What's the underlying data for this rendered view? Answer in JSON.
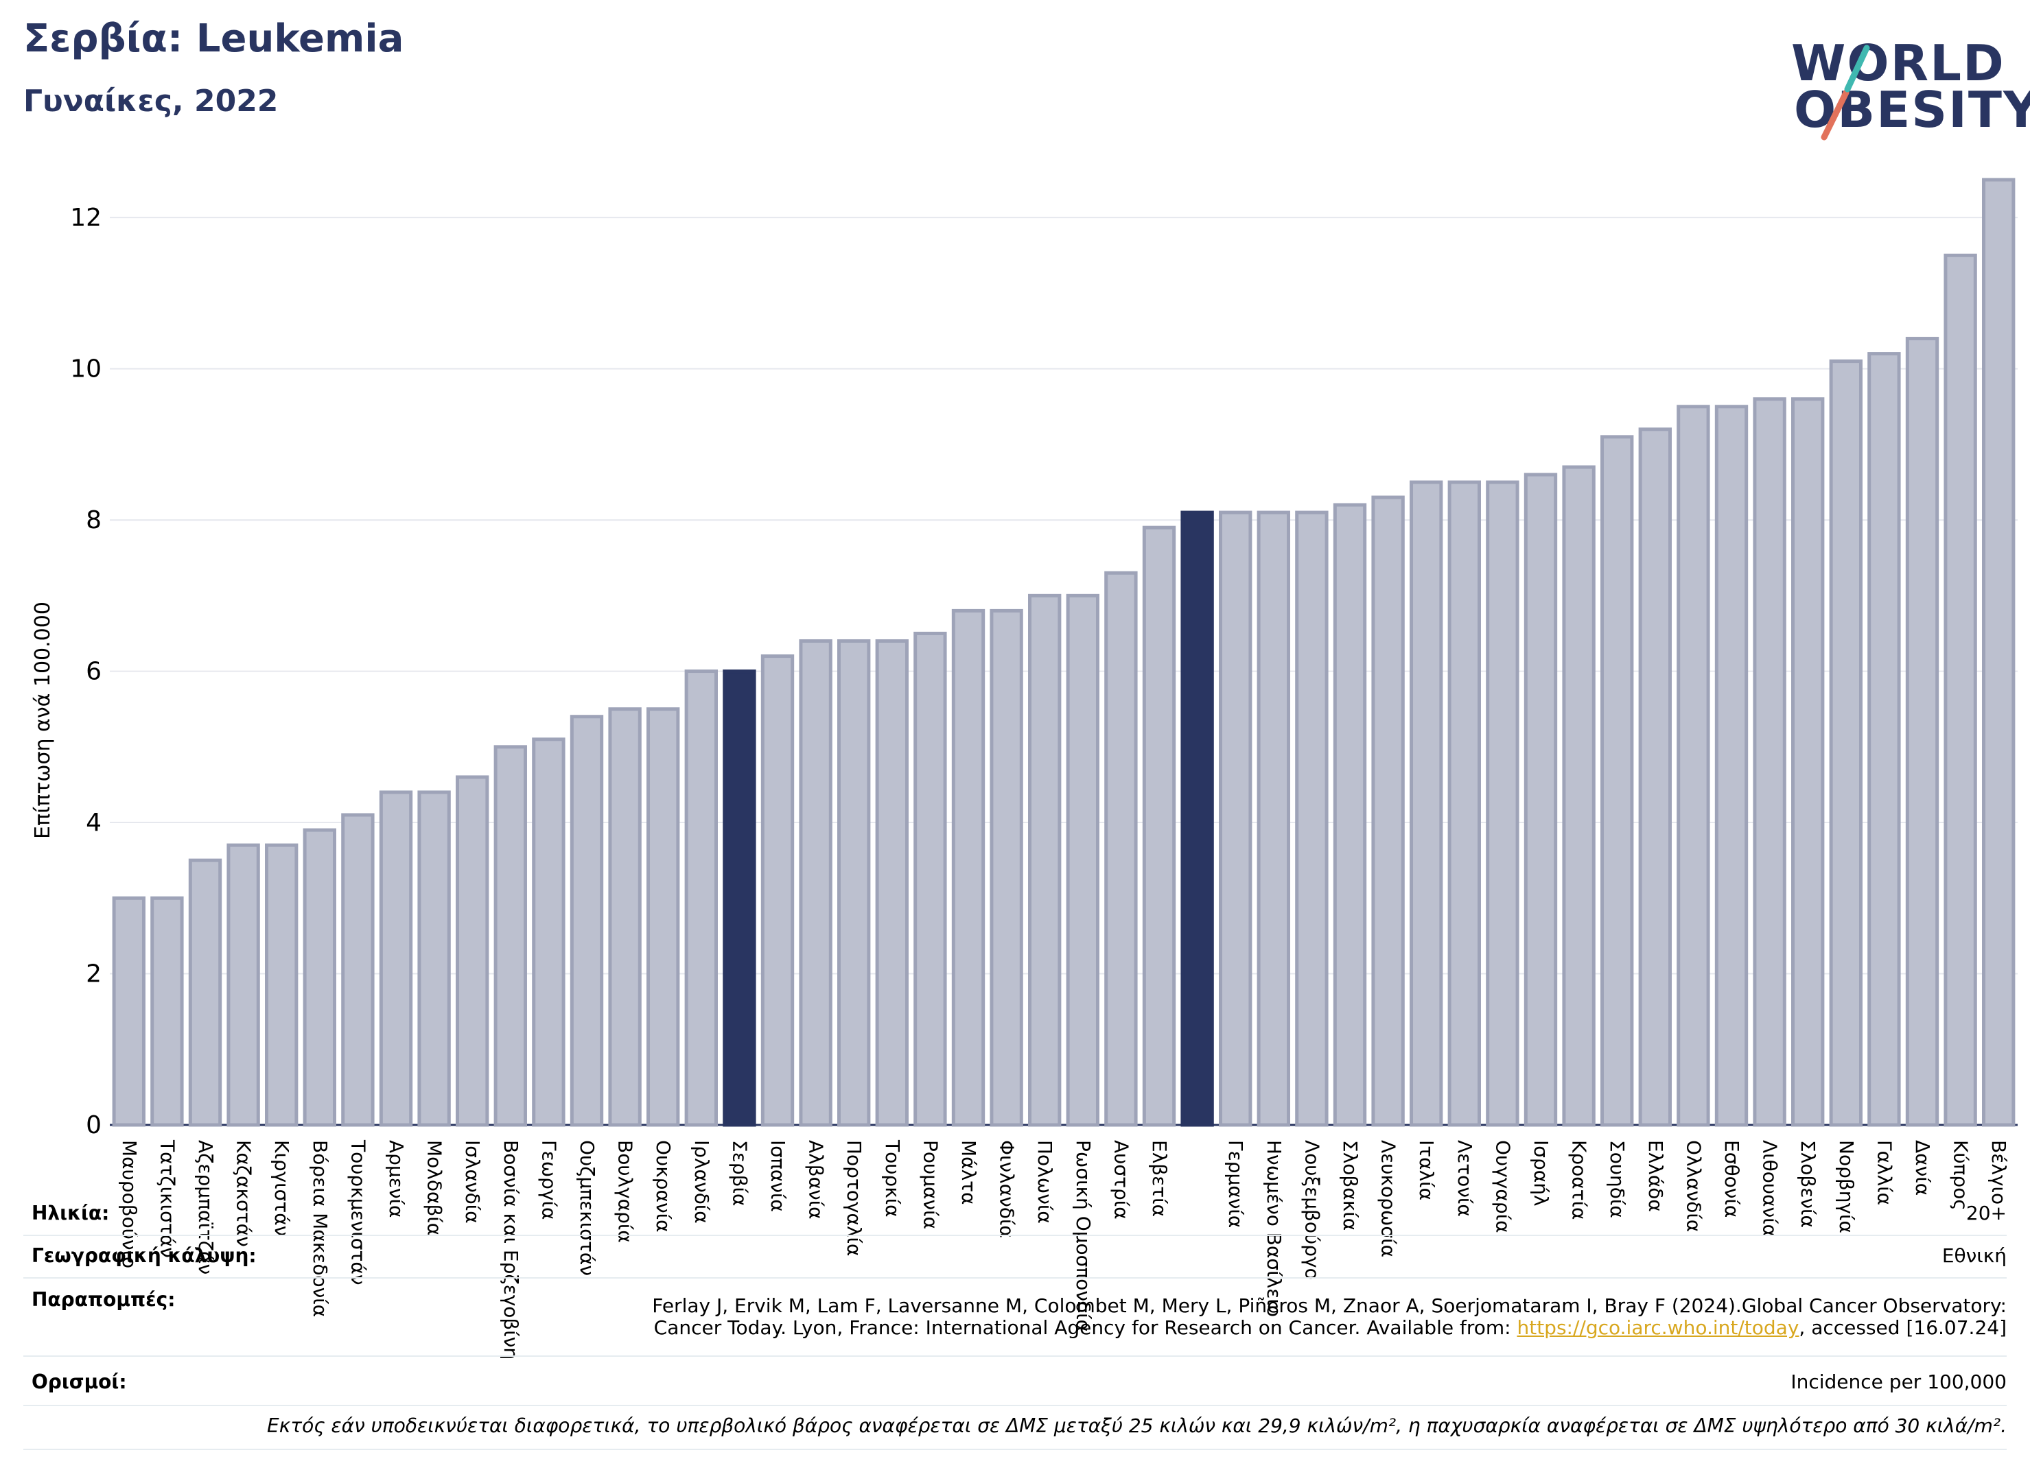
{
  "header": {
    "title": "Σερβία: Leukemia",
    "subtitle": "Γυναίκες, 2022"
  },
  "logo": {
    "line1": "WORLD",
    "line2": "OBESITY"
  },
  "chart_data": {
    "type": "bar",
    "ylabel": "Επίπτωση ανά 100.000",
    "ylim": [
      0,
      12.7
    ],
    "yticks": [
      0,
      2,
      4,
      6,
      8,
      10,
      12
    ],
    "grid": true,
    "colors": {
      "default": "#bcc0cf",
      "default_border": "#9ea3b8",
      "highlight": "#293561"
    },
    "categories": [
      "Μαυροβούνιο",
      "Τατζικιστάν",
      "Αζερμπαϊτζάν",
      "Καζακστάν",
      "Κιργιστάν",
      "Βόρεια Μακεδονία",
      "Τουρκμενιστάν",
      "Αρμενία",
      "Μολδαβία",
      "Ισλανδία",
      "Βοσνία και Ερζεγοβίνη",
      "Γεωργία",
      "Ουζμπεκιστάν",
      "Βουλγαρία",
      "Ουκρανία",
      "Ιρλανδία",
      "Σερβία",
      "Ισπανία",
      "Αλβανία",
      "Πορτογαλία",
      "Τουρκία",
      "Ρουμανία",
      "Μάλτα",
      "Φινλανδία",
      "Πολωνία",
      "Ρωσική Ομοσπονδία",
      "Αυστρία",
      "Ελβετία",
      "",
      "Γερμανία",
      "Ηνωμένο Βασίλειο",
      "Λουξεμβούργο",
      "Σλοβακία",
      "Λευκορωσία",
      "Ιταλία",
      "Λετονία",
      "Ουγγαρία",
      "Ισραήλ",
      "Κροατία",
      "Σουηδία",
      "Ελλάδα",
      "Ολλανδία",
      "Εσθονία",
      "Λιθουανία",
      "Σλοβενία",
      "Νορβηγία",
      "Γαλλία",
      "Δανία",
      "Κύπρος",
      "Βέλγιο"
    ],
    "values": [
      3.0,
      3.0,
      3.5,
      3.7,
      3.7,
      3.9,
      4.1,
      4.4,
      4.4,
      4.6,
      5.0,
      5.1,
      5.4,
      5.5,
      5.5,
      6.0,
      6.0,
      6.2,
      6.4,
      6.4,
      6.4,
      6.5,
      6.8,
      6.8,
      7.0,
      7.0,
      7.3,
      7.9,
      8.1,
      8.1,
      8.1,
      8.1,
      8.2,
      8.3,
      8.5,
      8.5,
      8.5,
      8.6,
      8.7,
      9.1,
      9.2,
      9.5,
      9.5,
      9.6,
      9.6,
      10.1,
      10.2,
      10.4,
      11.5,
      12.5
    ],
    "highlighted": [
      16,
      28
    ]
  },
  "info": {
    "age_label": "Ηλικία:",
    "age_value": "20+",
    "coverage_label": "Γεωγραφική κάλυψη:",
    "coverage_value": "Εθνική",
    "refs_label": "Παραπομπές:",
    "refs_line1": "Ferlay J, Ervik M, Lam F, Laversanne M, Colombet M, Mery L, Piñeros M, Znaor A, Soerjomataram I, Bray F (2024).Global Cancer Observatory:",
    "refs_line2a": "Cancer Today. Lyon, France: International Agency for Research on Cancer. Available from: ",
    "refs_link": "https://gco.iarc.who.int/today",
    "refs_line2b": ", accessed [16.07.24]",
    "defs_label": "Ορισμοί:",
    "defs_value": "Incidence per 100,000",
    "footnote": "Εκτός εάν υποδεικνύεται διαφορετικά, το υπερβολικό βάρος αναφέρεται σε ΔΜΣ μεταξύ 25 κιλών και 29,9 κιλών/m², η παχυσαρκία αναφέρεται σε ΔΜΣ υψηλότερο από 30 κιλά/m²."
  }
}
